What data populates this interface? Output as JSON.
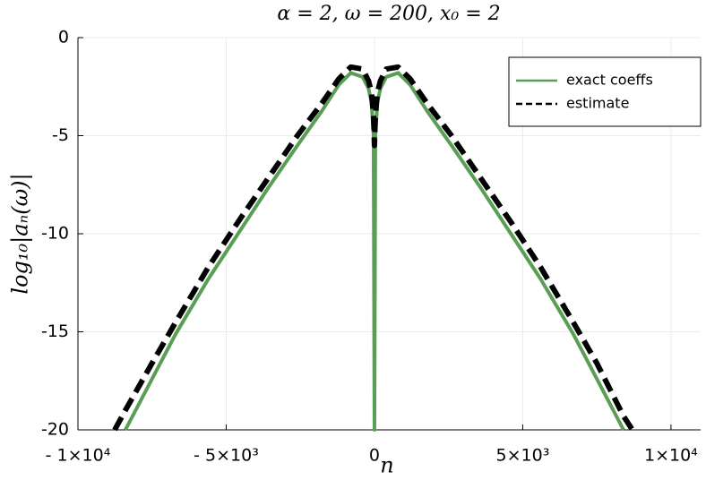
{
  "chart_data": {
    "type": "line",
    "title": "α = 2, ω = 200, x₀ = 2",
    "x_label": "n",
    "y_label": "log₁₀|aₙ(ω)|",
    "x": [
      -8760,
      -8400,
      -7500,
      -6700,
      -5600,
      -4600,
      -3600,
      -2600,
      -1800,
      -1200,
      -800,
      -400,
      -200,
      -100,
      -30,
      0,
      30,
      100,
      200,
      400,
      800,
      1200,
      1800,
      2600,
      3600,
      4600,
      5600,
      6700,
      7500,
      8400,
      8700
    ],
    "series": [
      {
        "name": "exact coeffs",
        "color": "#5a9e55",
        "dashed": false,
        "values": [
          null,
          -20,
          -17.4,
          -15.1,
          -12.3,
          -10,
          -7.7,
          -5.5,
          -3.8,
          -2.4,
          -1.8,
          -2.0,
          -2.6,
          -3.3,
          -5,
          -20,
          -5,
          -3.3,
          -2.6,
          -2.0,
          -1.8,
          -2.4,
          -3.8,
          -5.5,
          -7.7,
          -10,
          -12.3,
          -15.1,
          -17.4,
          -20,
          null
        ]
      },
      {
        "name": "estimate",
        "color": "#000000",
        "dashed": true,
        "values": [
          -20,
          -19.0,
          -16.6,
          -14.5,
          -11.7,
          -9.4,
          -7.2,
          -5.0,
          -3.4,
          -2.1,
          -1.5,
          -1.6,
          -2.2,
          -2.8,
          -4.0,
          -5.5,
          -4.0,
          -2.8,
          -2.2,
          -1.6,
          -1.5,
          -2.1,
          -3.4,
          -5.0,
          -7.2,
          -9.4,
          -11.7,
          -14.5,
          -16.6,
          -19.3,
          -20
        ]
      }
    ],
    "xlim": [
      -10000,
      11000
    ],
    "ylim": [
      -20,
      0
    ],
    "xticks": [
      {
        "value": -10000,
        "label": "- 1×10⁴"
      },
      {
        "value": -5000,
        "label": "- 5×10³"
      },
      0,
      {
        "value": 5000,
        "label": "5×10³"
      },
      {
        "value": 10000,
        "label": "1×10⁴"
      }
    ],
    "yticks": [
      0,
      -5,
      -10,
      -15,
      -20
    ],
    "grid": true,
    "legend": "top-right"
  }
}
